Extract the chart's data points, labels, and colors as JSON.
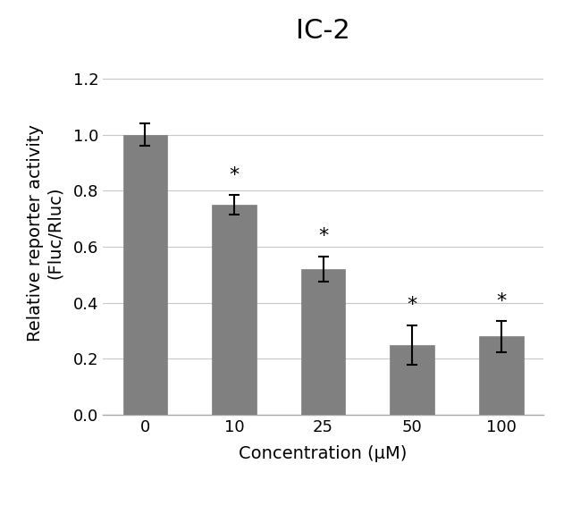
{
  "title": "IC-2",
  "xlabel": "Concentration (μM)",
  "ylabel": "Relative reporter activity\n(Fluc/Rluc)",
  "categories": [
    "0",
    "10",
    "25",
    "50",
    "100"
  ],
  "values": [
    1.0,
    0.75,
    0.52,
    0.25,
    0.28
  ],
  "errors": [
    0.04,
    0.035,
    0.045,
    0.07,
    0.055
  ],
  "bar_color": "#808080",
  "bar_edge_color": "#808080",
  "ylim": [
    0.0,
    1.3
  ],
  "yticks": [
    0.0,
    0.2,
    0.4,
    0.6,
    0.8,
    1.0,
    1.2
  ],
  "significance": [
    false,
    true,
    true,
    true,
    true
  ],
  "title_fontsize": 22,
  "label_fontsize": 14,
  "tick_fontsize": 13,
  "background_color": "#ffffff",
  "grid_color": "#c8c8c8"
}
